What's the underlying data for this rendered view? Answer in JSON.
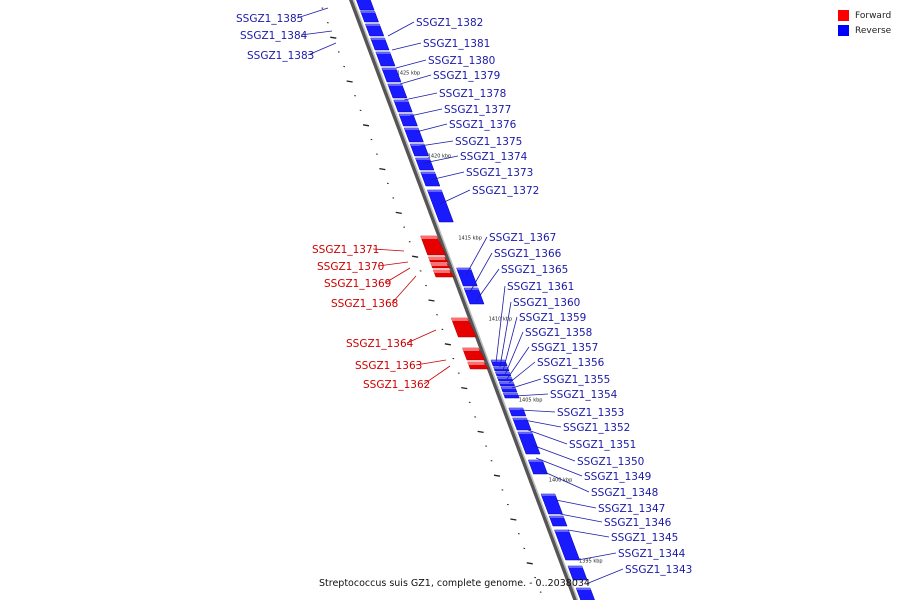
{
  "caption": "Streptococcus suis GZ1, complete genome. - 0..2038034",
  "colors": {
    "forward": "#e60000",
    "reverse": "#1a1aff",
    "forward_label": "#cc0000",
    "reverse_label": "#1a1aa8",
    "backbone": "#777777"
  },
  "legend": {
    "items": [
      {
        "label": "Forward",
        "color": "#ff0000"
      },
      {
        "label": "Reverse",
        "color": "#0000ff"
      }
    ]
  },
  "scale_marks": [
    "1425 kbp",
    "1420 kbp",
    "1415 kbp",
    "1410 kbp",
    "1405 kbp",
    "1400 kbp",
    "1395 kbp"
  ],
  "genes_reverse": [
    "SSGZ1_1385",
    "SSGZ1_1384",
    "SSGZ1_1383",
    "SSGZ1_1382",
    "SSGZ1_1381",
    "SSGZ1_1380",
    "SSGZ1_1379",
    "SSGZ1_1378",
    "SSGZ1_1377",
    "SSGZ1_1376",
    "SSGZ1_1375",
    "SSGZ1_1374",
    "SSGZ1_1373",
    "SSGZ1_1372",
    "SSGZ1_1367",
    "SSGZ1_1366",
    "SSGZ1_1365",
    "SSGZ1_1361",
    "SSGZ1_1360",
    "SSGZ1_1359",
    "SSGZ1_1358",
    "SSGZ1_1357",
    "SSGZ1_1356",
    "SSGZ1_1355",
    "SSGZ1_1354",
    "SSGZ1_1353",
    "SSGZ1_1352",
    "SSGZ1_1351",
    "SSGZ1_1350",
    "SSGZ1_1349",
    "SSGZ1_1348",
    "SSGZ1_1347",
    "SSGZ1_1346",
    "SSGZ1_1345",
    "SSGZ1_1344",
    "SSGZ1_1343"
  ],
  "genes_forward": [
    "SSGZ1_1371",
    "SSGZ1_1370",
    "SSGZ1_1369",
    "SSGZ1_1368",
    "SSGZ1_1364",
    "SSGZ1_1363",
    "SSGZ1_1362"
  ]
}
